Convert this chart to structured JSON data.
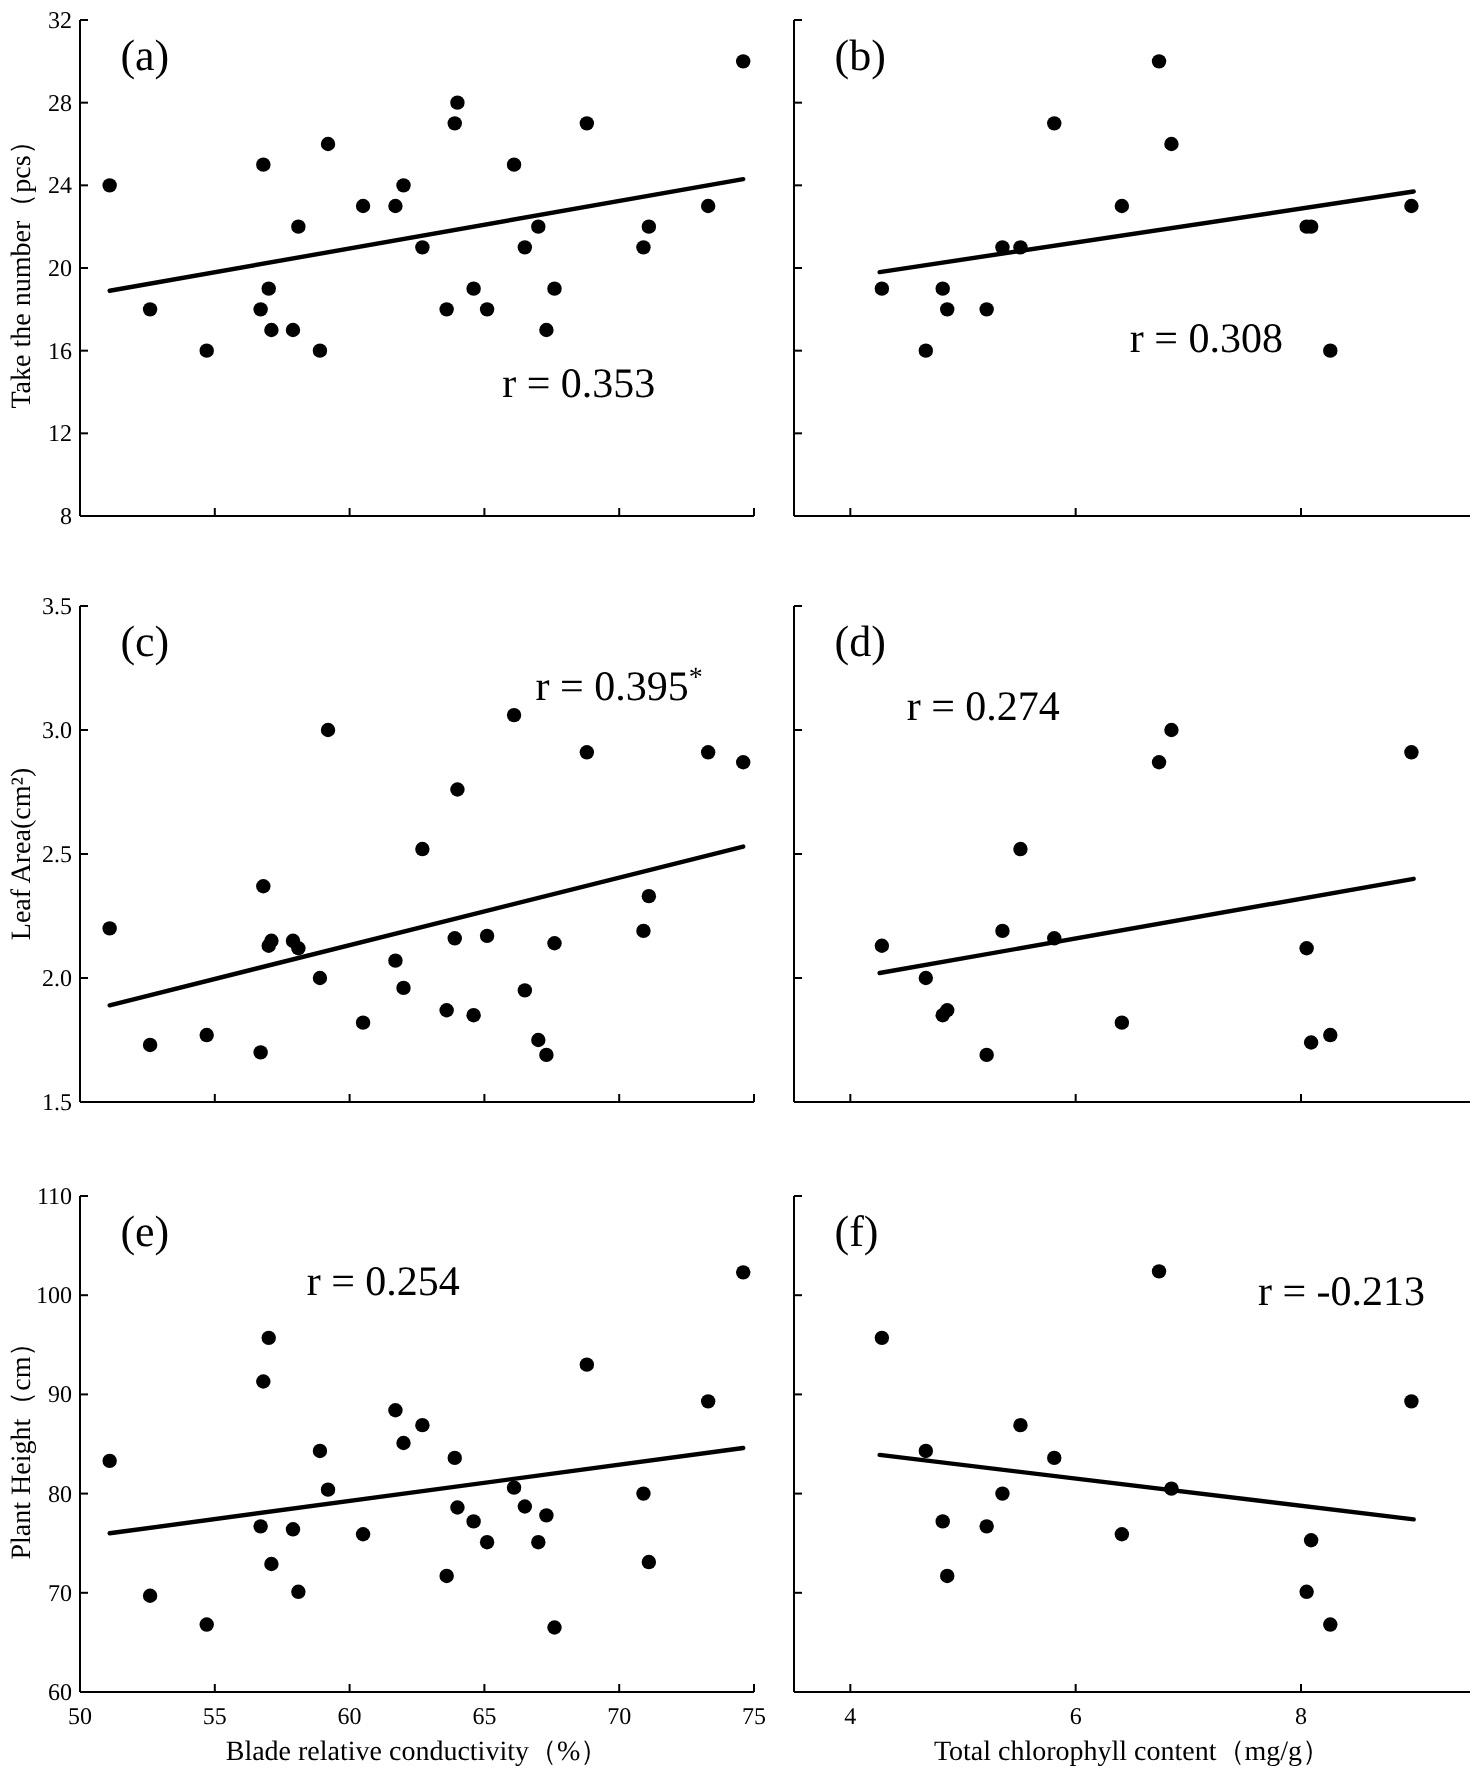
{
  "chart_data": [
    {
      "type": "scatter",
      "ylabel": "Take the number（pcs）",
      "annotations": [
        "(a)",
        "r = 0.353"
      ],
      "xlim": [
        50,
        75
      ],
      "xticks": [
        50,
        55,
        60,
        65,
        70,
        75
      ],
      "ylim": [
        8,
        32
      ],
      "yticks": [
        8,
        12,
        16,
        20,
        24,
        28,
        32
      ],
      "tick_labels": "y",
      "series": [
        {
          "marker": "circle",
          "color": "#000000",
          "x": [
            51.1,
            52.6,
            54.7,
            56.7,
            56.8,
            57.0,
            57.1,
            57.9,
            58.1,
            58.9,
            59.2,
            60.5,
            61.7,
            62.0,
            62.7,
            63.6,
            63.9,
            64.0,
            64.6,
            65.1,
            66.1,
            66.5,
            67.0,
            67.3,
            67.6,
            68.8,
            70.9,
            71.1,
            73.3,
            74.6
          ],
          "values": [
            24,
            18,
            16,
            18,
            25,
            19,
            17,
            17,
            22,
            16,
            26,
            23,
            23,
            24,
            21,
            18,
            27,
            28,
            19,
            18,
            25,
            21,
            22,
            17,
            19,
            27,
            21,
            22,
            23,
            30
          ]
        },
        {
          "type": "line",
          "color": "#000000",
          "x": [
            51.1,
            74.6
          ],
          "values": [
            18.9,
            24.3
          ]
        }
      ]
    },
    {
      "type": "scatter",
      "annotations": [
        "(b)",
        "r = 0.308"
      ],
      "xlim": [
        3.5,
        9.5
      ],
      "xticks": [
        4,
        6,
        8
      ],
      "ylim": [
        8,
        32
      ],
      "yticks": [
        8,
        12,
        16,
        20,
        24,
        28,
        32
      ],
      "tick_labels": false,
      "series": [
        {
          "marker": "circle",
          "color": "#000000",
          "x": [
            4.28,
            4.67,
            4.82,
            4.86,
            5.21,
            5.35,
            5.51,
            5.81,
            6.41,
            6.74,
            6.85,
            8.05,
            8.09,
            8.26,
            8.98
          ],
          "values": [
            19,
            16,
            19,
            18,
            18,
            21,
            21,
            27,
            23,
            30,
            26,
            22,
            22,
            16,
            23
          ]
        },
        {
          "type": "line",
          "color": "#000000",
          "x": [
            4.26,
            9.0
          ],
          "values": [
            19.8,
            23.7
          ]
        }
      ]
    },
    {
      "type": "scatter",
      "ylabel": "Leaf Area(cm²)",
      "annotations": [
        "(c)",
        "r = 0.395$^{*}$"
      ],
      "xlim": [
        50,
        75
      ],
      "xticks": [
        50,
        55,
        60,
        65,
        70,
        75
      ],
      "ylim": [
        1.5,
        3.5
      ],
      "yticks": [
        {
          "value": 1.5,
          "label": "1.5"
        },
        {
          "value": 2,
          "label": "2.0"
        },
        {
          "value": 2.5,
          "label": "2.5"
        },
        {
          "value": 3,
          "label": "3.0"
        },
        {
          "value": 3.5,
          "label": "3.5"
        }
      ],
      "tick_labels": "y",
      "series": [
        {
          "marker": "circle",
          "color": "#000000",
          "x": [
            51.1,
            52.6,
            54.7,
            56.7,
            56.8,
            57.0,
            57.1,
            57.9,
            58.1,
            58.9,
            59.2,
            60.5,
            61.7,
            62.0,
            62.7,
            63.6,
            63.9,
            64.0,
            64.6,
            65.1,
            66.1,
            66.5,
            67.0,
            67.3,
            67.6,
            68.8,
            70.9,
            71.1,
            73.3,
            74.6
          ],
          "values": [
            2.2,
            1.73,
            1.77,
            1.7,
            2.37,
            2.13,
            2.15,
            2.15,
            2.12,
            2.0,
            3.0,
            1.82,
            2.07,
            1.96,
            2.52,
            1.87,
            2.16,
            2.76,
            1.85,
            2.17,
            3.06,
            1.95,
            1.75,
            1.69,
            2.14,
            2.91,
            2.19,
            2.33,
            2.91,
            2.87
          ]
        },
        {
          "type": "line",
          "color": "#000000",
          "x": [
            51.1,
            74.6
          ],
          "values": [
            1.89,
            2.53
          ]
        }
      ]
    },
    {
      "type": "scatter",
      "annotations": [
        "(d)",
        "r = 0.274"
      ],
      "xlim": [
        3.5,
        9.5
      ],
      "xticks": [
        4,
        6,
        8
      ],
      "ylim": [
        1.5,
        3.5
      ],
      "yticks": [
        1.5,
        2,
        2.5,
        3,
        3.5
      ],
      "tick_labels": false,
      "series": [
        {
          "marker": "circle",
          "color": "#000000",
          "x": [
            4.28,
            4.67,
            4.82,
            4.86,
            5.21,
            5.35,
            5.51,
            5.81,
            6.41,
            6.74,
            6.85,
            8.05,
            8.09,
            8.26,
            8.98
          ],
          "values": [
            2.13,
            2.0,
            1.85,
            1.87,
            1.69,
            2.19,
            2.52,
            2.16,
            1.82,
            2.87,
            3.0,
            2.12,
            1.74,
            1.77,
            2.91
          ]
        },
        {
          "type": "line",
          "color": "#000000",
          "x": [
            4.26,
            9.0
          ],
          "values": [
            2.02,
            2.4
          ]
        }
      ]
    },
    {
      "type": "scatter",
      "xlabel": "Blade relative conductivity（%）",
      "ylabel": "Plant Height（cm）",
      "annotations": [
        "(e)",
        "r = 0.254"
      ],
      "xlim": [
        50,
        75
      ],
      "xticks": [
        50,
        55,
        60,
        65,
        70,
        75
      ],
      "ylim": [
        60,
        110
      ],
      "yticks": [
        60,
        70,
        80,
        90,
        100,
        110
      ],
      "series": [
        {
          "marker": "circle",
          "color": "#000000",
          "x": [
            51.1,
            52.6,
            54.7,
            56.7,
            56.8,
            57.0,
            57.1,
            57.9,
            58.1,
            58.9,
            59.2,
            60.5,
            61.7,
            62.0,
            62.7,
            63.6,
            63.9,
            64.0,
            64.6,
            65.1,
            66.1,
            66.5,
            67.0,
            67.3,
            67.6,
            68.8,
            70.9,
            71.1,
            73.3,
            74.6
          ],
          "values": [
            83.3,
            69.7,
            66.8,
            76.7,
            91.3,
            95.7,
            72.9,
            76.4,
            70.1,
            84.3,
            80.4,
            75.9,
            88.4,
            85.1,
            86.9,
            71.7,
            83.6,
            78.6,
            77.2,
            75.1,
            80.6,
            78.7,
            75.1,
            77.8,
            66.5,
            93.0,
            80.0,
            73.1,
            89.3,
            102.3
          ]
        },
        {
          "type": "line",
          "color": "#000000",
          "x": [
            51.1,
            74.6
          ],
          "values": [
            76.0,
            84.6
          ]
        }
      ]
    },
    {
      "type": "scatter",
      "xlabel": "Total chlorophyll content（mg/g）",
      "annotations": [
        "(f)",
        "r = -0.213"
      ],
      "xlim": [
        3.5,
        9.5
      ],
      "xticks": [
        4,
        6,
        8
      ],
      "ylim": [
        60,
        110
      ],
      "yticks": [
        60,
        70,
        80,
        90,
        100,
        110
      ],
      "tick_labels": "x",
      "series": [
        {
          "marker": "circle",
          "color": "#000000",
          "x": [
            4.28,
            4.67,
            4.82,
            4.86,
            5.21,
            5.35,
            5.51,
            5.81,
            6.41,
            6.74,
            6.85,
            8.05,
            8.09,
            8.26,
            8.98
          ],
          "values": [
            95.7,
            84.3,
            77.2,
            71.7,
            76.7,
            80.0,
            86.9,
            83.6,
            75.9,
            102.4,
            80.5,
            70.1,
            75.3,
            66.8,
            89.3
          ]
        },
        {
          "type": "line",
          "color": "#000000",
          "x": [
            4.26,
            9.0
          ],
          "values": [
            83.9,
            77.4
          ]
        }
      ]
    }
  ]
}
